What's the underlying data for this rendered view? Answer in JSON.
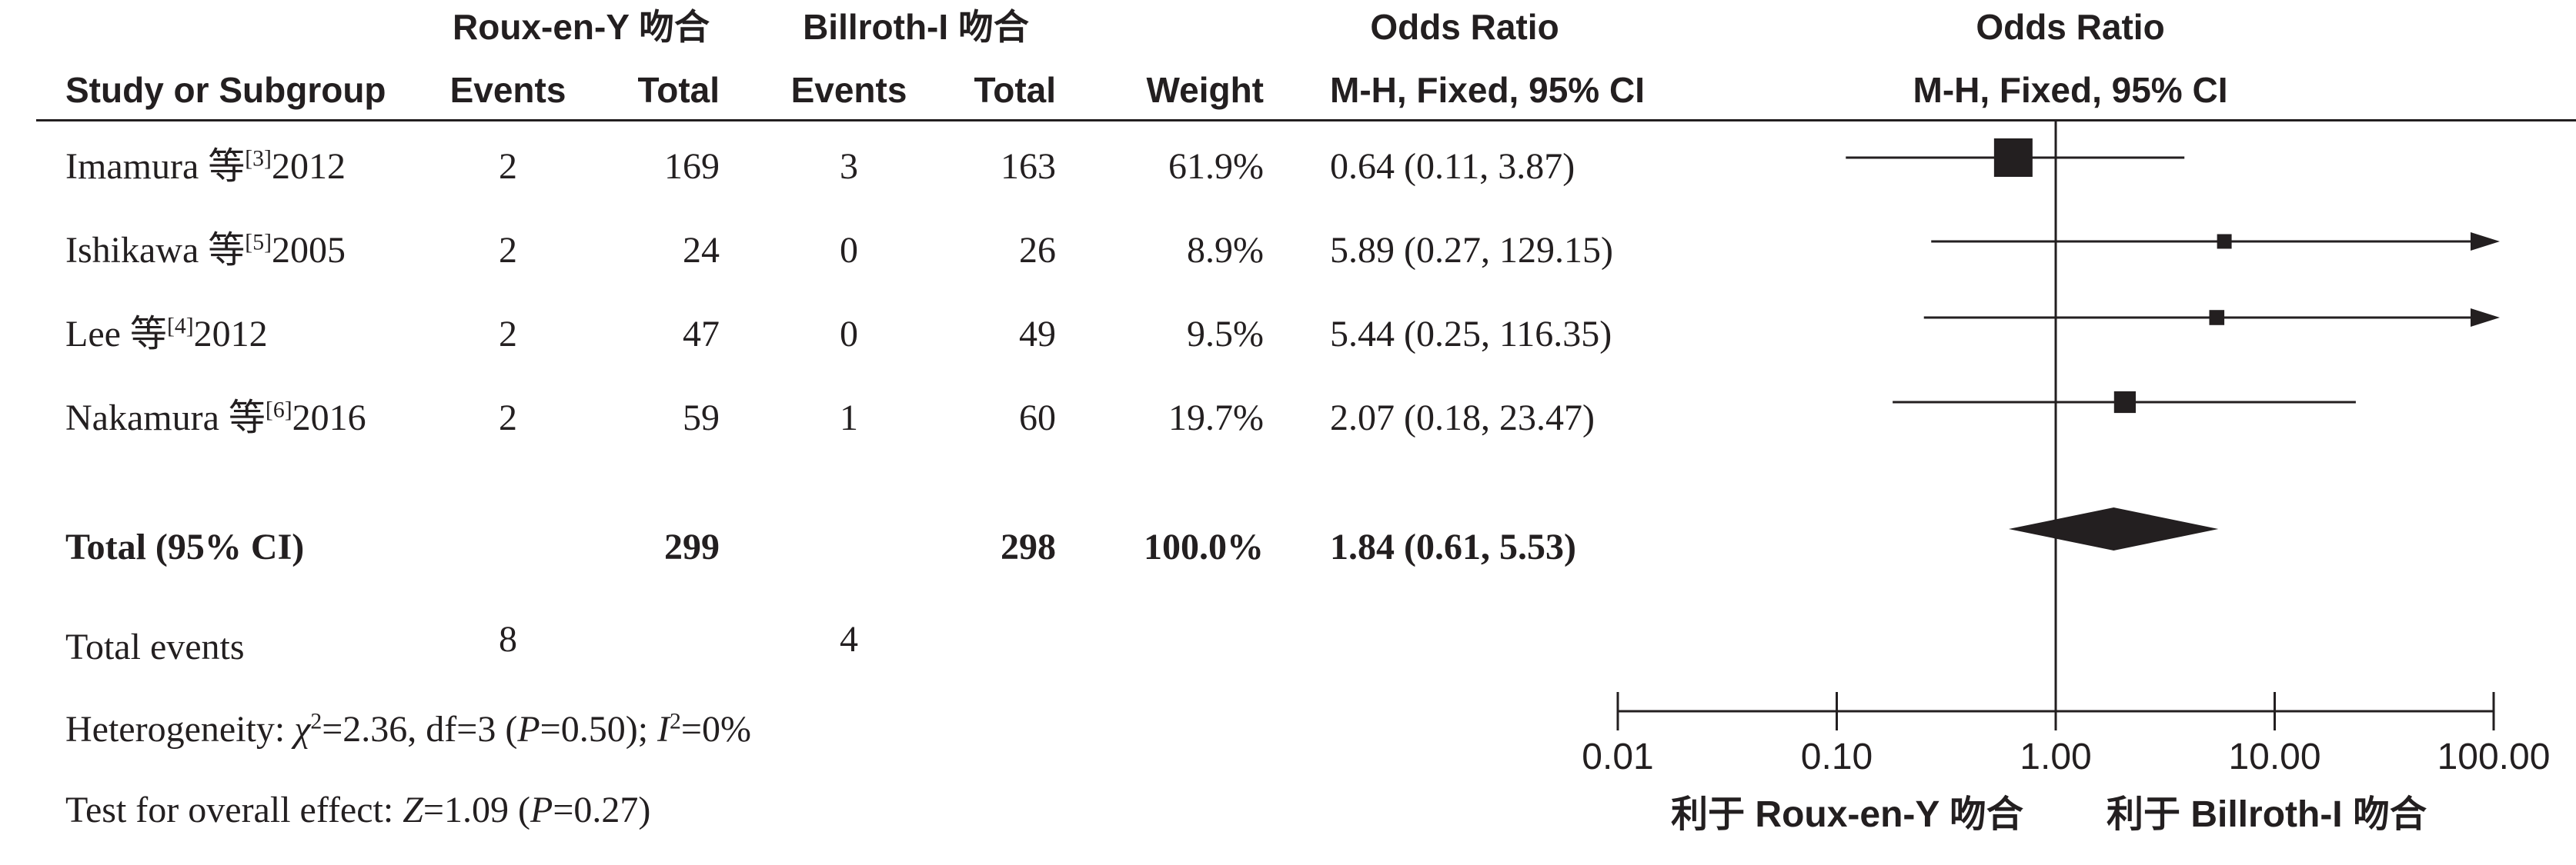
{
  "header": {
    "group1": "Roux-en-Y 吻合",
    "group2": "Billroth-I 吻合",
    "or_top": "Odds Ratio",
    "plot_top": "Odds Ratio",
    "study": "Study or Subgroup",
    "events1": "Events",
    "total1": "Total",
    "events2": "Events",
    "total2": "Total",
    "weight": "Weight",
    "or_method": "M-H, Fixed, 95% CI",
    "plot_method": "M-H, Fixed, 95% CI"
  },
  "studies": [
    {
      "name": "Imamura 等",
      "ref": "[3]",
      "year": "2012",
      "events1": "2",
      "total1": "169",
      "events2": "3",
      "total2": "163",
      "weight": "61.9%",
      "ci": "0.64 (0.11, 3.87)"
    },
    {
      "name": "Ishikawa 等",
      "ref": "[5]",
      "year": "2005",
      "events1": "2",
      "total1": "24",
      "events2": "0",
      "total2": "26",
      "weight": "8.9%",
      "ci": "5.89 (0.27, 129.15)"
    },
    {
      "name": "Lee 等",
      "ref": "[4]",
      "year": "2012",
      "events1": "2",
      "total1": "47",
      "events2": "0",
      "total2": "49",
      "weight": "9.5%",
      "ci": "5.44 (0.25, 116.35)"
    },
    {
      "name": "Nakamura 等",
      "ref": "[6]",
      "year": "2016",
      "events1": "2",
      "total1": "59",
      "events2": "1",
      "total2": "60",
      "weight": "19.7%",
      "ci": "2.07 (0.18, 23.47)"
    }
  ],
  "total": {
    "label": "Total (95% CI)",
    "total1": "299",
    "total2": "298",
    "weight": "100.0%",
    "ci": "1.84 (0.61, 5.53)"
  },
  "total_events": {
    "label": "Total events",
    "events1": "8",
    "events2": "4"
  },
  "heterogeneity": {
    "prefix": "Heterogeneity: ",
    "chi_sym": "χ",
    "chi_sup": "2",
    "chi_val": "=2.36, df=3 (",
    "p_sym": "P",
    "p_val": "=0.50); ",
    "i_sym": "I",
    "i_sup": "2",
    "i_val": "=0%"
  },
  "overall": {
    "prefix": "Test for overall effect: ",
    "z_sym": "Z",
    "z_val": "=1.09 (",
    "p_sym": "P",
    "p_val": "=0.27)"
  },
  "chart_data": {
    "type": "forest",
    "scale": "log",
    "xlim": [
      0.01,
      100
    ],
    "reference_line": 1,
    "ticks": [
      0.01,
      0.1,
      1,
      10,
      100
    ],
    "tick_labels": [
      "0.01",
      "0.10",
      "1.00",
      "10.00",
      "100.00"
    ],
    "favours_left": "利于 Roux-en-Y 吻合",
    "favours_right": "利于 Billroth-I 吻合",
    "studies": [
      {
        "label": "Imamura 等2012",
        "or": 0.64,
        "lower": 0.11,
        "upper": 3.87,
        "weight": 61.9
      },
      {
        "label": "Ishikawa 等2005",
        "or": 5.89,
        "lower": 0.27,
        "upper": 129.15,
        "weight": 8.9
      },
      {
        "label": "Lee 等2012",
        "or": 5.44,
        "lower": 0.25,
        "upper": 116.35,
        "weight": 9.5
      },
      {
        "label": "Nakamura 等2016",
        "or": 2.07,
        "lower": 0.18,
        "upper": 23.47,
        "weight": 19.7
      }
    ],
    "pooled": {
      "or": 1.84,
      "lower": 0.61,
      "upper": 5.53
    },
    "color": "#231f20"
  }
}
